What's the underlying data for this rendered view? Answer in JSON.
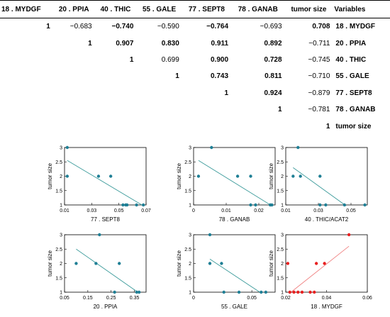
{
  "table": {
    "headers": [
      "18 . MYDGF",
      "20 . PPIA",
      "40 . THIC",
      "55 . GALE",
      "77 . SEPT8",
      "78 . GANAB",
      "tumor size",
      "Variables"
    ],
    "rows": [
      {
        "cells": [
          "1",
          "−0.683",
          "−0.740",
          "−0.590",
          "−0.764",
          "−0.693",
          "0.708"
        ],
        "bold": [
          true,
          false,
          true,
          false,
          true,
          false,
          true
        ],
        "variable": "18 . MYDGF"
      },
      {
        "cells": [
          "",
          "1",
          "0.907",
          "0.830",
          "0.911",
          "0.892",
          "−0.711"
        ],
        "bold": [
          false,
          true,
          true,
          true,
          true,
          true,
          false
        ],
        "variable": "20 . PPIA"
      },
      {
        "cells": [
          "",
          "",
          "1",
          "0.699",
          "0.900",
          "0.728",
          "−0.745"
        ],
        "bold": [
          false,
          false,
          true,
          false,
          true,
          true,
          false
        ],
        "variable": "40 . THIC"
      },
      {
        "cells": [
          "",
          "",
          "",
          "1",
          "0.743",
          "0.811",
          "−0.710"
        ],
        "bold": [
          false,
          false,
          false,
          true,
          true,
          true,
          false
        ],
        "variable": "55 . GALE"
      },
      {
        "cells": [
          "",
          "",
          "",
          "",
          "1",
          "0.924",
          "−0.879"
        ],
        "bold": [
          false,
          false,
          false,
          false,
          true,
          true,
          false
        ],
        "variable": "77 . SEPT8"
      },
      {
        "cells": [
          "",
          "",
          "",
          "",
          "",
          "1",
          "−0.781"
        ],
        "bold": [
          false,
          false,
          false,
          false,
          false,
          true,
          false
        ],
        "variable": "78 . GANAB"
      },
      {
        "cells": [
          "",
          "",
          "",
          "",
          "",
          "",
          "1"
        ],
        "bold": [
          false,
          false,
          false,
          false,
          false,
          false,
          true
        ],
        "variable": "tumor size"
      }
    ]
  },
  "chart_data": [
    {
      "type": "scatter",
      "xlabel": "77 . SEPT8",
      "ylabel": "tumor size",
      "xlim": [
        0.01,
        0.07
      ],
      "ylim": [
        1,
        3
      ],
      "xticks": [
        "0.01",
        "0.03",
        "0.05",
        "0.07"
      ],
      "xtick_values": [
        0.01,
        0.03,
        0.05,
        0.07
      ],
      "yticks": [
        "1",
        "1.5",
        "2",
        "2.5",
        "3"
      ],
      "color": "#1f7f95",
      "line_color": "#3a9a9a",
      "points": [
        [
          0.012,
          3
        ],
        [
          0.012,
          2
        ],
        [
          0.035,
          2
        ],
        [
          0.044,
          2
        ],
        [
          0.053,
          1
        ],
        [
          0.055,
          1
        ],
        [
          0.056,
          1
        ],
        [
          0.063,
          1
        ],
        [
          0.068,
          1
        ]
      ],
      "fit": [
        [
          0.012,
          2.55
        ],
        [
          0.068,
          0.97
        ]
      ]
    },
    {
      "type": "scatter",
      "xlabel": "78 . GANAB",
      "ylabel": "tumor size",
      "xlim": [
        0,
        0.025
      ],
      "ylim": [
        1,
        3
      ],
      "xticks": [
        "0",
        "0.01",
        "0.02"
      ],
      "xtick_values": [
        0,
        0.01,
        0.02
      ],
      "yticks": [
        "1",
        "1.5",
        "2",
        "2.5",
        "3"
      ],
      "color": "#1f7f95",
      "line_color": "#3a9a9a",
      "points": [
        [
          0.0015,
          2
        ],
        [
          0.0055,
          3
        ],
        [
          0.0135,
          2
        ],
        [
          0.0175,
          2
        ],
        [
          0.0175,
          1
        ],
        [
          0.019,
          1
        ],
        [
          0.0235,
          1
        ],
        [
          0.024,
          1
        ]
      ],
      "fit": [
        [
          0.0015,
          2.55
        ],
        [
          0.024,
          0.97
        ]
      ]
    },
    {
      "type": "scatter",
      "xlabel": "40 . THIC/ACAT2",
      "ylabel": "tumor size",
      "xlim": [
        0.01,
        0.06
      ],
      "ylim": [
        1,
        3
      ],
      "xticks": [
        "0.01",
        "0.03",
        "0.05"
      ],
      "xtick_values": [
        0.01,
        0.03,
        0.05
      ],
      "yticks": [
        "1",
        "1.5",
        "2",
        "2.5",
        "3"
      ],
      "color": "#1f7f95",
      "line_color": "#3a9a9a",
      "points": [
        [
          0.0145,
          2
        ],
        [
          0.0175,
          3
        ],
        [
          0.019,
          2
        ],
        [
          0.031,
          2
        ],
        [
          0.031,
          1
        ],
        [
          0.0345,
          1
        ],
        [
          0.046,
          1
        ],
        [
          0.0585,
          1
        ]
      ],
      "fit": [
        [
          0.0145,
          2.3
        ],
        [
          0.047,
          0.97
        ]
      ]
    },
    {
      "type": "scatter",
      "xlabel": "20 . PPIA",
      "ylabel": "tumor size",
      "xlim": [
        0.05,
        0.4
      ],
      "ylim": [
        1,
        3
      ],
      "xticks": [
        "0.05",
        "0.15",
        "0.25",
        "0.35"
      ],
      "xtick_values": [
        0.05,
        0.15,
        0.25,
        0.35
      ],
      "yticks": [
        "1",
        "1.5",
        "2",
        "2.5",
        "3"
      ],
      "color": "#1f7f95",
      "line_color": "#3a9a9a",
      "points": [
        [
          0.1,
          2
        ],
        [
          0.185,
          2
        ],
        [
          0.2,
          3
        ],
        [
          0.265,
          1
        ],
        [
          0.285,
          2
        ],
        [
          0.36,
          1
        ],
        [
          0.37,
          1
        ]
      ],
      "fit": [
        [
          0.1,
          2.5
        ],
        [
          0.37,
          0.97
        ]
      ]
    },
    {
      "type": "scatter",
      "xlabel": "55 . GALE",
      "ylabel": "tumor size",
      "xlim": [
        0,
        0.07
      ],
      "ylim": [
        1,
        3
      ],
      "xticks": [
        "0",
        "0.05"
      ],
      "xtick_values": [
        0,
        0.05
      ],
      "yticks": [
        "1",
        "1.5",
        "2",
        "2.5",
        "3"
      ],
      "color": "#1f7f95",
      "line_color": "#3a9a9a",
      "points": [
        [
          0.014,
          3
        ],
        [
          0.014,
          2
        ],
        [
          0.024,
          2
        ],
        [
          0.026,
          1
        ],
        [
          0.039,
          1
        ],
        [
          0.058,
          1
        ],
        [
          0.062,
          1
        ]
      ],
      "fit": [
        [
          0.014,
          2.15
        ],
        [
          0.058,
          0.97
        ]
      ]
    },
    {
      "type": "scatter",
      "xlabel": "18 . MYDGF",
      "ylabel": "tumor size",
      "xlim": [
        0.02,
        0.06
      ],
      "ylim": [
        1,
        3
      ],
      "xticks": [
        "0.02",
        "0.04",
        "0.06"
      ],
      "xtick_values": [
        0.02,
        0.04,
        0.06
      ],
      "yticks": [
        "1",
        "1.5",
        "2",
        "2.5",
        "3"
      ],
      "color": "#e82020",
      "line_color": "#f08080",
      "points": [
        [
          0.021,
          2
        ],
        [
          0.022,
          1
        ],
        [
          0.024,
          1
        ],
        [
          0.026,
          1
        ],
        [
          0.028,
          1
        ],
        [
          0.032,
          1
        ],
        [
          0.034,
          1
        ],
        [
          0.035,
          2
        ],
        [
          0.039,
          2
        ],
        [
          0.051,
          3
        ]
      ],
      "fit": [
        [
          0.022,
          0.97
        ],
        [
          0.051,
          2.6
        ]
      ]
    }
  ]
}
